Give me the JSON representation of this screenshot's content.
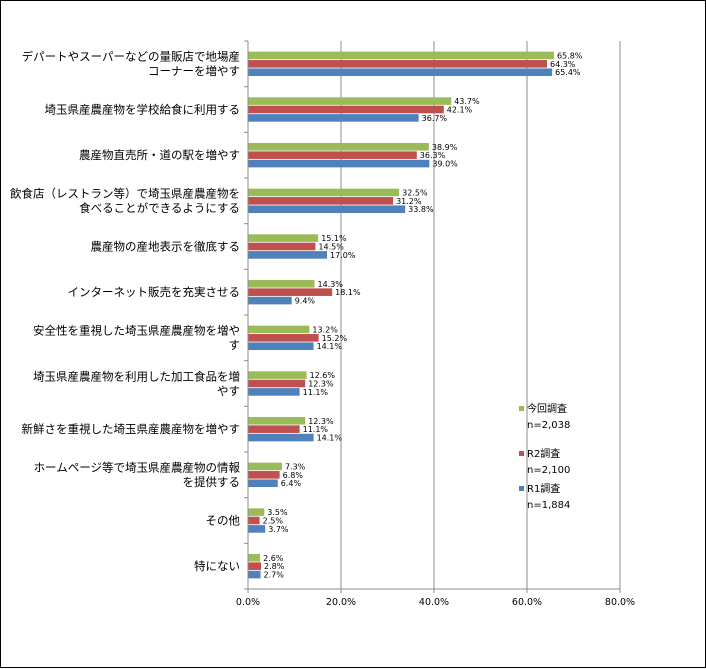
{
  "chart_data": {
    "type": "bar",
    "orientation": "horizontal",
    "categories": [
      [
        "デパートやスーパーなどの量販店で地場産",
        "コーナーを増やす"
      ],
      [
        "埼玉県産農産物を学校給食に利用する"
      ],
      [
        "農産物直売所・道の駅を増やす"
      ],
      [
        "飲食店（レストラン等）で埼玉県産農産物を",
        "食べることができるようにする"
      ],
      [
        "農産物の産地表示を徹底する"
      ],
      [
        "インターネット販売を充実させる"
      ],
      [
        "安全性を重視した埼玉県産農産物を増や",
        "す"
      ],
      [
        "埼玉県産農産物を利用した加工食品を増",
        "やす"
      ],
      [
        "新鮮さを重視した埼玉県産農産物を増やす"
      ],
      [
        "ホームページ等で埼玉県産農産物の情報",
        "を提供する"
      ],
      [
        "その他"
      ],
      [
        "特にない"
      ]
    ],
    "series": [
      {
        "name": "今回調査",
        "n": "n=2,038",
        "color": "#9bbb59",
        "values": [
          65.8,
          43.7,
          38.9,
          32.5,
          15.1,
          14.3,
          13.2,
          12.6,
          12.3,
          7.3,
          3.5,
          2.6
        ],
        "labels": [
          "65.8%",
          "43.7%",
          "38.9%",
          "32.5%",
          "15.1%",
          "14.3%",
          "13.2%",
          "12.6%",
          "12.3%",
          "7.3%",
          "3.5%",
          "2.6%"
        ]
      },
      {
        "name": "R2調査",
        "n": "n=2,100",
        "color": "#c0504d",
        "values": [
          64.3,
          42.1,
          36.3,
          31.2,
          14.5,
          18.1,
          15.2,
          12.3,
          11.1,
          6.8,
          2.5,
          2.8
        ],
        "labels": [
          "64.3%",
          "42.1%",
          "36.3%",
          "31.2%",
          "14.5%",
          "18.1%",
          "15.2%",
          "12.3%",
          "11.1%",
          "6.8%",
          "2.5%",
          "2.8%"
        ]
      },
      {
        "name": "R1調査",
        "n": "n=1,884",
        "color": "#4f81bd",
        "values": [
          65.4,
          36.7,
          39.0,
          33.8,
          17.0,
          9.4,
          14.1,
          11.1,
          14.1,
          6.4,
          3.7,
          2.7
        ],
        "labels": [
          "65.4%",
          "36.7%",
          "39.0%",
          "33.8%",
          "17.0%",
          "9.4%",
          "14.1%",
          "11.1%",
          "14.1%",
          "6.4%",
          "3.7%",
          "2.7%"
        ]
      }
    ],
    "xlim": [
      0,
      80
    ],
    "xticks": [
      0,
      20,
      40,
      60,
      80
    ],
    "xtick_labels": [
      "0.0%",
      "20.0%",
      "40.0%",
      "60.0%",
      "80.0%"
    ],
    "grid": true,
    "legend_position": "right"
  }
}
